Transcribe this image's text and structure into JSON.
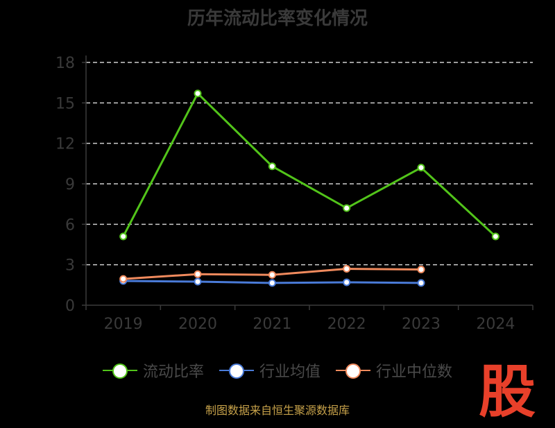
{
  "chart_data": {
    "type": "line",
    "title": "历年流动比率变化情况",
    "categories": [
      "2019",
      "2020",
      "2021",
      "2022",
      "2023",
      "2024"
    ],
    "ylim": [
      0,
      18
    ],
    "yticks": [
      0,
      3,
      6,
      9,
      12,
      15,
      18
    ],
    "grid": true,
    "legend_position": "bottom",
    "series": [
      {
        "name": "流动比率",
        "color": "#52c41a",
        "values": [
          5.1,
          15.7,
          10.3,
          7.2,
          10.2,
          5.1
        ]
      },
      {
        "name": "行业均值",
        "color": "#4a7bd8",
        "values": [
          1.8,
          1.75,
          1.65,
          1.7,
          1.65,
          null
        ]
      },
      {
        "name": "行业中位数",
        "color": "#f08a5d",
        "values": [
          1.95,
          2.3,
          2.25,
          2.7,
          2.65,
          null
        ]
      }
    ]
  },
  "source": "制图数据来自恒生聚源数据库",
  "watermark": "股"
}
